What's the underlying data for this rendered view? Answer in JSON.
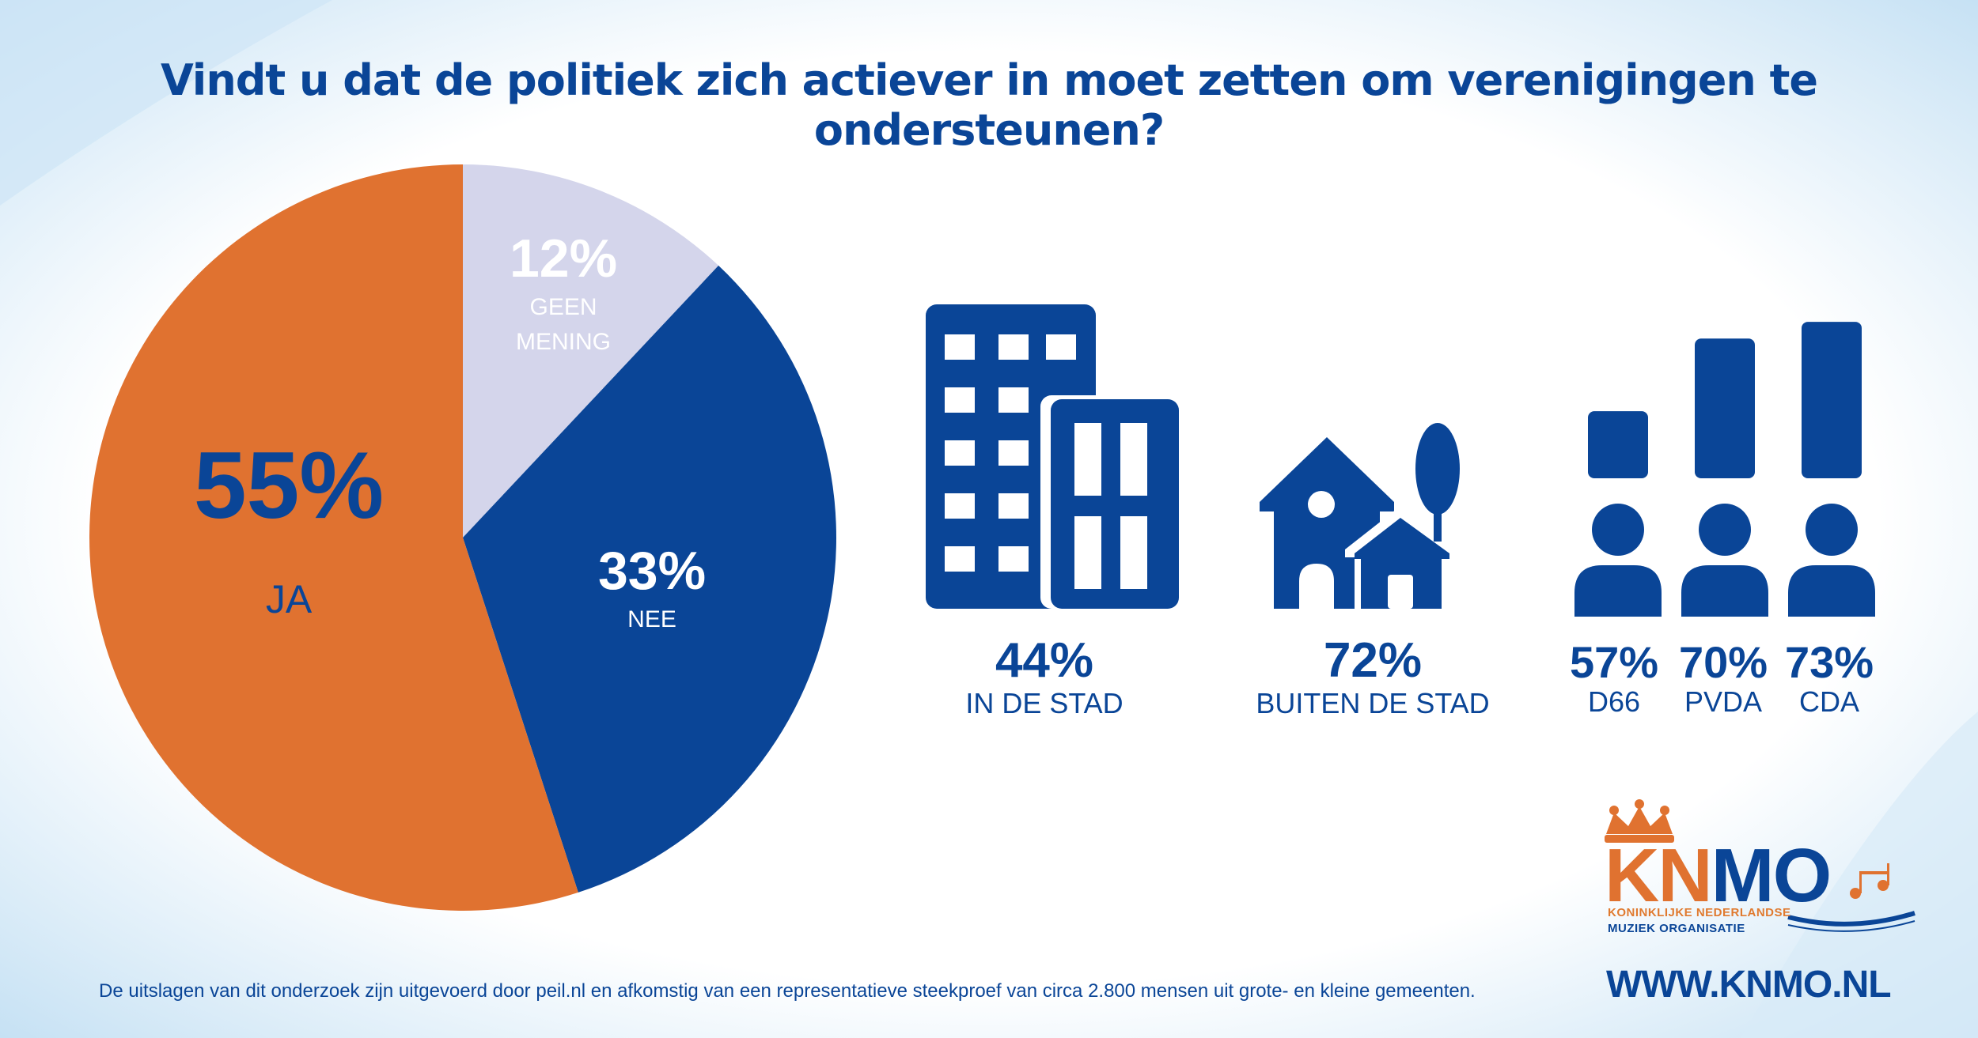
{
  "title": "Vindt u dat de politiek zich actiever in moet zetten om verenigingen te ondersteunen?",
  "colors": {
    "blue": "#0a4597",
    "orange": "#e07230",
    "lavender": "#d4d5eb",
    "white": "#ffffff"
  },
  "chart_data": [
    {
      "type": "pie",
      "title": "",
      "slices": [
        {
          "label": "GEEN MENING",
          "value": 12,
          "display": "12%",
          "color": "#d4d5eb",
          "text_color": "#ffffff"
        },
        {
          "label": "NEE",
          "value": 33,
          "display": "33%",
          "color": "#0a4597",
          "text_color": "#ffffff"
        },
        {
          "label": "JA",
          "value": 55,
          "display": "55%",
          "color": "#e07230",
          "text_color": "#0a4597"
        }
      ]
    },
    {
      "type": "table",
      "title": "",
      "items": [
        {
          "label": "IN DE STAD",
          "value": 44,
          "display": "44%",
          "icon": "city-buildings-icon"
        },
        {
          "label": "BUITEN DE STAD",
          "value": 72,
          "display": "72%",
          "icon": "house-tree-icon"
        }
      ]
    },
    {
      "type": "bar",
      "title": "",
      "categories": [
        "D66",
        "PVDA",
        "CDA"
      ],
      "values": [
        57,
        70,
        73
      ],
      "displays": [
        "57%",
        "70%",
        "73%"
      ],
      "icon": "person-icon"
    }
  ],
  "footnote": "De uitslagen van dit onderzoek zijn uitgevoerd door peil.nl en afkomstig van een representatieve steekproef van circa 2.800 mensen uit grote- en kleine gemeenten.",
  "logo": {
    "letters_orange": "KN",
    "letters_blue": "MO",
    "subtitle_line1": "KONINKLIJKE NEDERLANDSE",
    "subtitle_line2": "MUZIEK ORGANISATIE",
    "icons": [
      "crown-icon",
      "music-notes-icon"
    ]
  },
  "website": "WWW.KNMO.NL"
}
